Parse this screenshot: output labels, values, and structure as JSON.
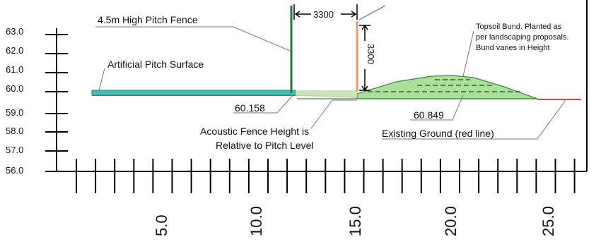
{
  "y_axis": {
    "ticks": [
      63.0,
      62.0,
      61.0,
      60.0,
      59.0,
      58.0,
      57.0,
      56.0
    ],
    "tick_labels": [
      "63.0",
      "62.0",
      "61.0",
      "60.0",
      "59.0",
      "58.0",
      "57.0",
      "56.0"
    ]
  },
  "x_axis": {
    "tick_labels": [
      "5.0",
      "10.0",
      "15.0",
      "20.0",
      "25.0"
    ],
    "range": [
      0,
      27
    ]
  },
  "annotations": {
    "pitch_fence": "4.5m High Pitch Fence",
    "pitch_surface": "Artificial Pitch Surface",
    "level_pitch": "60.158",
    "acoustic_line1": "Acoustic Fence Height is",
    "acoustic_line2": "Relative to Pitch Level",
    "level_bund": "60.849",
    "existing_ground": "Existing Ground (red line)",
    "bund_line1": "Topsoil Bund. Planted as",
    "bund_line2": "per landscaping proposals.",
    "bund_line3": "Bund varies in Height"
  },
  "dimensions": {
    "horizontal": "3300",
    "vertical": "3300"
  },
  "colors": {
    "pitch_surface": "#36c6b8",
    "existing_ground": "#ff3b3b",
    "pitch_fence": "#1f7a3a",
    "acoustic_fence": "#e89a6b",
    "bund_fill": "#8fd67a",
    "bund_edge": "#3a8a3a",
    "leader": "#555555"
  }
}
